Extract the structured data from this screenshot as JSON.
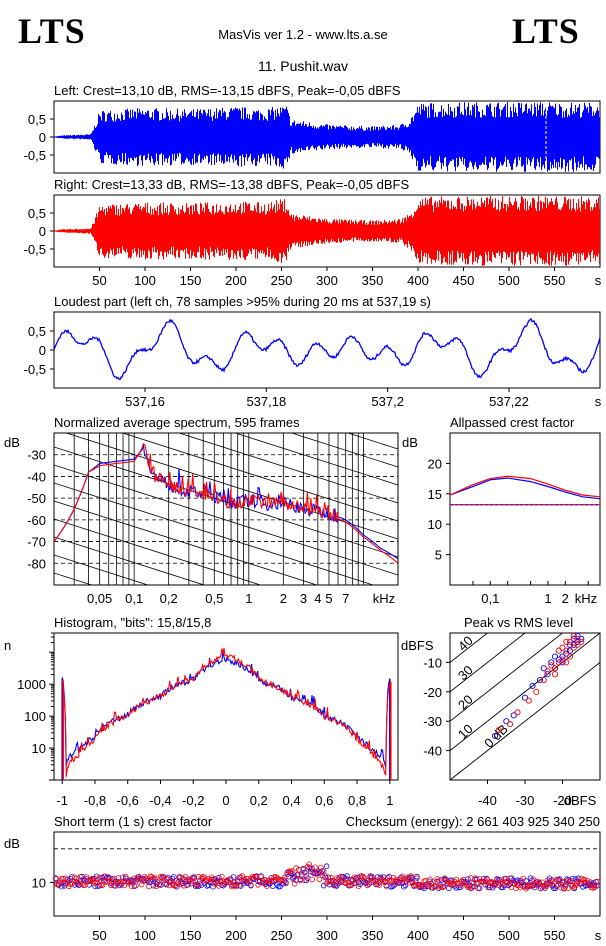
{
  "header": {
    "logo_left": "LTS",
    "logo_right": "LTS",
    "app_title": "MasVis ver 1.2 - www.lts.a.se",
    "file_title": "11. Pushit.wav"
  },
  "colors": {
    "left": "#0000ff",
    "right": "#ff0000",
    "grid": "#000000"
  },
  "chart_data": [
    {
      "id": "left",
      "type": "line",
      "title": "Left: Crest=13,10 dB, RMS=-13,15 dBFS, Peak=-0,05 dBFS",
      "y_ticks": [
        "0,5",
        "0",
        "-0,5"
      ],
      "ylim": [
        -1,
        1
      ],
      "envelope": [
        [
          0,
          0.02
        ],
        [
          10,
          0.05
        ],
        [
          40,
          0.08
        ],
        [
          50,
          0.75
        ],
        [
          100,
          0.82
        ],
        [
          150,
          0.78
        ],
        [
          200,
          0.85
        ],
        [
          230,
          0.8
        ],
        [
          255,
          0.9
        ],
        [
          260,
          0.5
        ],
        [
          300,
          0.35
        ],
        [
          350,
          0.3
        ],
        [
          380,
          0.35
        ],
        [
          390,
          0.5
        ],
        [
          400,
          0.95
        ],
        [
          450,
          0.98
        ],
        [
          500,
          0.98
        ],
        [
          545,
          0.99
        ],
        [
          555,
          0.97
        ],
        [
          600,
          0.97
        ]
      ],
      "xlim": [
        0,
        600
      ]
    },
    {
      "id": "right",
      "type": "line",
      "title": "Right: Crest=13,33 dB, RMS=-13,38 dBFS, Peak=-0,05 dBFS",
      "y_ticks": [
        "0,5",
        "0",
        "-0,5"
      ],
      "ylim": [
        -1,
        1
      ],
      "envelope": [
        [
          0,
          0.02
        ],
        [
          10,
          0.05
        ],
        [
          40,
          0.08
        ],
        [
          50,
          0.75
        ],
        [
          100,
          0.8
        ],
        [
          150,
          0.78
        ],
        [
          200,
          0.84
        ],
        [
          230,
          0.8
        ],
        [
          255,
          0.92
        ],
        [
          260,
          0.5
        ],
        [
          300,
          0.35
        ],
        [
          350,
          0.3
        ],
        [
          380,
          0.35
        ],
        [
          390,
          0.5
        ],
        [
          400,
          0.95
        ],
        [
          450,
          0.98
        ],
        [
          500,
          0.98
        ],
        [
          545,
          0.99
        ],
        [
          555,
          0.97
        ],
        [
          600,
          0.97
        ]
      ],
      "xlim": [
        0,
        600
      ],
      "x_ticks": [
        "50",
        "100",
        "150",
        "200",
        "250",
        "300",
        "350",
        "400",
        "450",
        "500",
        "550"
      ],
      "x_unit": "s"
    },
    {
      "id": "loudest",
      "type": "line",
      "title": "Loudest part (left  ch, 78 samples >95% during 20 ms at 537,19 s)",
      "y_ticks": [
        "0,5",
        "0",
        "-0,5"
      ],
      "ylim": [
        -1,
        1
      ],
      "xlim": [
        537.145,
        537.235
      ],
      "x_ticks": [
        "537,16",
        "537,18",
        "537,2",
        "537,22"
      ],
      "x_tick_values": [
        537.16,
        537.18,
        537.2,
        537.22
      ],
      "x_unit": "s"
    },
    {
      "id": "spectrum",
      "type": "line",
      "title": "Normalized average spectrum, 595 frames",
      "ylabel": "dB",
      "y_ticks": [
        "-30",
        "-40",
        "-50",
        "-60",
        "-70",
        "-80"
      ],
      "y_tick_values": [
        -30,
        -40,
        -50,
        -60,
        -70,
        -80
      ],
      "ylim": [
        -90,
        -20
      ],
      "x_ticks": [
        "0,05",
        "0,1",
        "0,2",
        "0,5",
        "1",
        "2",
        "3",
        "4",
        "5",
        "7"
      ],
      "x_tick_values": [
        0.05,
        0.1,
        0.2,
        0.5,
        1,
        2,
        3,
        4,
        5,
        7
      ],
      "x_unit": "kHz",
      "xlim": [
        0.02,
        20
      ],
      "series": [
        {
          "values": [
            [
              0.02,
              -70
            ],
            [
              0.03,
              -55
            ],
            [
              0.04,
              -38
            ],
            [
              0.05,
              -34
            ],
            [
              0.07,
              -33
            ],
            [
              0.1,
              -32
            ],
            [
              0.12,
              -27
            ],
            [
              0.15,
              -40
            ],
            [
              0.2,
              -44
            ],
            [
              0.3,
              -47
            ],
            [
              0.5,
              -49
            ],
            [
              0.7,
              -52
            ],
            [
              1,
              -51
            ],
            [
              1.5,
              -53
            ],
            [
              2,
              -52
            ],
            [
              3,
              -55
            ],
            [
              4,
              -56
            ],
            [
              5,
              -57
            ],
            [
              7,
              -60
            ],
            [
              10,
              -67
            ],
            [
              14,
              -73
            ],
            [
              20,
              -78
            ]
          ]
        },
        {
          "values": [
            [
              0.02,
              -70
            ],
            [
              0.03,
              -55
            ],
            [
              0.04,
              -38
            ],
            [
              0.05,
              -35
            ],
            [
              0.07,
              -34
            ],
            [
              0.1,
              -33
            ],
            [
              0.12,
              -26
            ],
            [
              0.15,
              -40
            ],
            [
              0.2,
              -44
            ],
            [
              0.3,
              -47
            ],
            [
              0.5,
              -50
            ],
            [
              0.7,
              -52
            ],
            [
              1,
              -51
            ],
            [
              1.5,
              -53
            ],
            [
              2,
              -52
            ],
            [
              3,
              -55
            ],
            [
              4,
              -56
            ],
            [
              5,
              -58
            ],
            [
              7,
              -61
            ],
            [
              10,
              -68
            ],
            [
              14,
              -74
            ],
            [
              20,
              -80
            ]
          ]
        }
      ]
    },
    {
      "id": "crest",
      "type": "line",
      "title": "Allpassed crest factor",
      "ylabel": "dB",
      "y_ticks": [
        "20",
        "15",
        "10",
        "5"
      ],
      "y_tick_values": [
        20,
        15,
        10,
        5
      ],
      "ylim": [
        0,
        25
      ],
      "x_ticks": [
        "0,1",
        "1",
        "2"
      ],
      "x_tick_values": [
        0.1,
        1,
        2
      ],
      "x_unit": "kHz",
      "xlim": [
        0.02,
        8
      ],
      "reference": 13.2,
      "series": [
        {
          "values": [
            [
              0.02,
              14.8
            ],
            [
              0.05,
              16.2
            ],
            [
              0.1,
              17.3
            ],
            [
              0.2,
              17.6
            ],
            [
              0.5,
              17.0
            ],
            [
              1,
              16.2
            ],
            [
              2,
              15.3
            ],
            [
              4,
              14.5
            ],
            [
              8,
              14.2
            ]
          ]
        },
        {
          "values": [
            [
              0.02,
              14.8
            ],
            [
              0.05,
              16.5
            ],
            [
              0.1,
              17.5
            ],
            [
              0.2,
              17.9
            ],
            [
              0.5,
              17.5
            ],
            [
              1,
              16.6
            ],
            [
              2,
              15.6
            ],
            [
              4,
              14.8
            ],
            [
              8,
              14.5
            ]
          ]
        }
      ]
    },
    {
      "id": "histogram",
      "type": "line",
      "title": "Histogram, \"bits\": 15,8/15,8",
      "ylabel": "n",
      "y_ticks": [
        "1000",
        "100",
        "10"
      ],
      "y_tick_values": [
        1000,
        100,
        10
      ],
      "ylim": [
        1,
        40000
      ],
      "x_ticks": [
        "-1",
        "-0,8",
        "-0,6",
        "-0,4",
        "-0,2",
        "0",
        "0,2",
        "0,4",
        "0,6",
        "0,8",
        "1"
      ],
      "x_tick_values": [
        -1,
        -0.8,
        -0.6,
        -0.4,
        -0.2,
        0,
        0.2,
        0.4,
        0.6,
        0.8,
        1
      ],
      "xlim": [
        -1.05,
        1.05
      ],
      "series": [
        {
          "values": [
            [
              -1,
              1500
            ],
            [
              -0.98,
              2
            ],
            [
              -0.95,
              6
            ],
            [
              -0.9,
              8
            ],
            [
              -0.8,
              22
            ],
            [
              -0.6,
              110
            ],
            [
              -0.4,
              420
            ],
            [
              -0.2,
              1400
            ],
            [
              0,
              6000
            ],
            [
              0.2,
              1300
            ],
            [
              0.4,
              400
            ],
            [
              0.6,
              100
            ],
            [
              0.8,
              20
            ],
            [
              0.9,
              8
            ],
            [
              0.95,
              5
            ],
            [
              0.98,
              2
            ],
            [
              1,
              1500
            ]
          ]
        },
        {
          "values": [
            [
              -1,
              1200
            ],
            [
              -0.98,
              1
            ],
            [
              -0.95,
              4
            ],
            [
              -0.9,
              6
            ],
            [
              -0.8,
              18
            ],
            [
              -0.6,
              100
            ],
            [
              -0.4,
              400
            ],
            [
              -0.2,
              1400
            ],
            [
              0,
              8000
            ],
            [
              0.2,
              1300
            ],
            [
              0.4,
              380
            ],
            [
              0.6,
              95
            ],
            [
              0.8,
              18
            ],
            [
              0.9,
              6
            ],
            [
              0.95,
              3
            ],
            [
              0.98,
              1
            ],
            [
              1,
              1200
            ]
          ]
        }
      ]
    },
    {
      "id": "peak_rms",
      "type": "scatter",
      "title": "Peak vs RMS level",
      "ylabel": "dBFS",
      "xlabel": "dBFS",
      "y_ticks": [
        "-10",
        "-20",
        "-30",
        "-40"
      ],
      "y_tick_values": [
        -10,
        -20,
        -30,
        -40
      ],
      "x_ticks": [
        "-40",
        "-30",
        "-20"
      ],
      "x_tick_values": [
        -40,
        -30,
        -20
      ],
      "xlim": [
        -50,
        -10
      ],
      "ylim": [
        -50,
        0
      ],
      "diagonal_labels": [
        "40",
        "30",
        "20",
        "10",
        "0 dB"
      ],
      "diagonal_values": [
        40,
        30,
        20,
        10,
        0
      ],
      "series": [
        {
          "values": [
            [
              -38,
              -35
            ],
            [
              -35,
              -30
            ],
            [
              -33,
              -28
            ],
            [
              -30,
              -22
            ],
            [
              -28,
              -18
            ],
            [
              -26,
              -16
            ],
            [
              -25,
              -12
            ],
            [
              -24,
              -14
            ],
            [
              -22,
              -12
            ],
            [
              -21,
              -9
            ],
            [
              -20,
              -8
            ],
            [
              -19,
              -7
            ],
            [
              -18,
              -6
            ],
            [
              -17,
              -4
            ],
            [
              -16,
              -3
            ],
            [
              -15,
              -2
            ],
            [
              -23,
              -10
            ],
            [
              -22,
              -8
            ],
            [
              -20,
              -10
            ],
            [
              -18,
              -4
            ],
            [
              -17,
              -2
            ],
            [
              -16,
              -1
            ]
          ]
        },
        {
          "values": [
            [
              -37,
              -33
            ],
            [
              -34,
              -31
            ],
            [
              -32,
              -27
            ],
            [
              -29,
              -23
            ],
            [
              -27,
              -20
            ],
            [
              -25,
              -16
            ],
            [
              -24,
              -13
            ],
            [
              -23,
              -11
            ],
            [
              -22,
              -14
            ],
            [
              -21,
              -10
            ],
            [
              -20,
              -9
            ],
            [
              -19,
              -6
            ],
            [
              -18,
              -8
            ],
            [
              -17,
              -5
            ],
            [
              -16,
              -2
            ],
            [
              -15,
              -3
            ],
            [
              -22,
              -12
            ],
            [
              -21,
              -6
            ],
            [
              -19,
              -10
            ],
            [
              -18,
              -3
            ],
            [
              -17,
              -1
            ],
            [
              -16,
              -4
            ],
            [
              -20,
              -5
            ],
            [
              -19,
              -3
            ]
          ]
        }
      ]
    },
    {
      "id": "short_crest",
      "type": "scatter",
      "title": "Short term (1 s) crest factor",
      "title_right": "Checksum (energy):  2 661 403 925 340 250",
      "ylabel": "dB",
      "y_ticks": [
        "10"
      ],
      "y_tick_values": [
        10
      ],
      "ylim": [
        0,
        25
      ],
      "reference": 20,
      "xlim": [
        0,
        600
      ],
      "x_ticks": [
        "50",
        "100",
        "150",
        "200",
        "250",
        "300",
        "350",
        "400",
        "450",
        "500",
        "550"
      ],
      "x_tick_values": [
        50,
        100,
        150,
        200,
        250,
        300,
        350,
        400,
        450,
        500,
        550
      ],
      "x_unit": "s"
    }
  ]
}
